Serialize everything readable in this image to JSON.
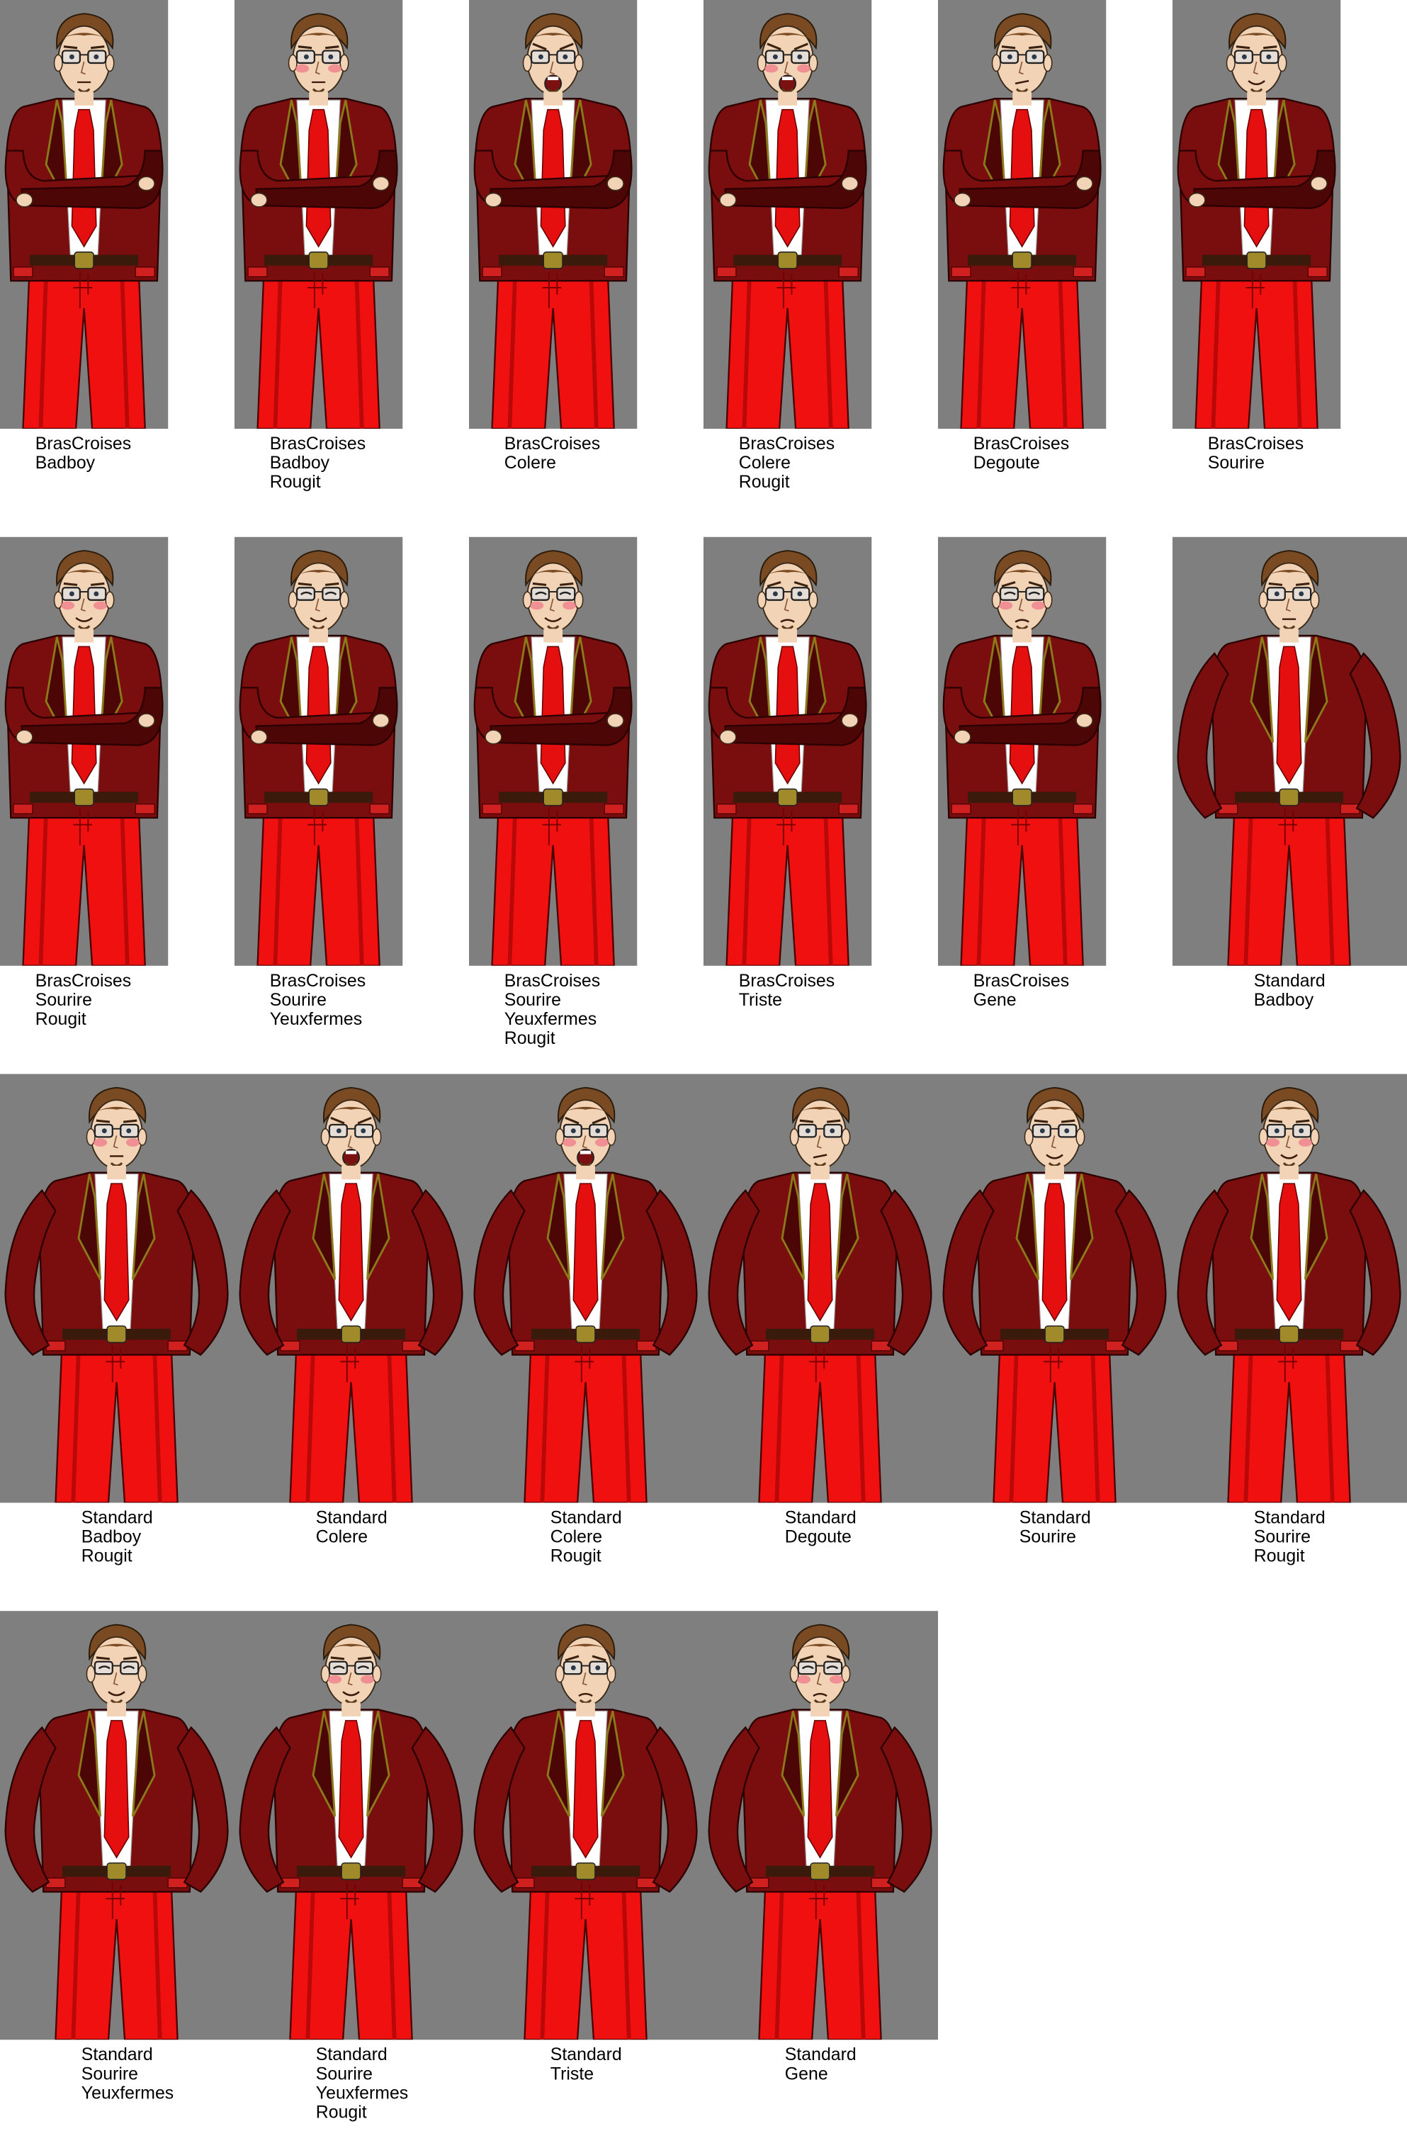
{
  "sheet": {
    "panel_color": "#7f7f7f",
    "background": "#ffffff",
    "colors": {
      "jacket": "#7a0d0d",
      "jacket_shadow": "#4d0606",
      "jacket_trim": "#8a7a1a",
      "tie": "#e50f0f",
      "pants": "#f01010",
      "pants_shadow": "#b80808",
      "shirt": "#ffffff",
      "skin": "#f3d3b5",
      "hair": "#7a4a23",
      "belt": "#3a1a0a",
      "buckle": "#a08a2a",
      "blush": "#f07a8a"
    }
  },
  "sprites": [
    {
      "pose": "BrasCroises",
      "lines": [
        "BrasCroises",
        "Badboy"
      ],
      "face": "neutral",
      "blush": false,
      "eyes": "open"
    },
    {
      "pose": "BrasCroises",
      "lines": [
        "BrasCroises",
        "Badboy",
        "Rougit"
      ],
      "face": "neutral",
      "blush": true,
      "eyes": "open"
    },
    {
      "pose": "BrasCroises",
      "lines": [
        "BrasCroises",
        "Colere"
      ],
      "face": "angry",
      "blush": false,
      "eyes": "open"
    },
    {
      "pose": "BrasCroises",
      "lines": [
        "BrasCroises",
        "Colere",
        "Rougit"
      ],
      "face": "angry",
      "blush": true,
      "eyes": "open"
    },
    {
      "pose": "BrasCroises",
      "lines": [
        "BrasCroises",
        "Degoute"
      ],
      "face": "disgust",
      "blush": false,
      "eyes": "open"
    },
    {
      "pose": "BrasCroises",
      "lines": [
        "BrasCroises",
        "Sourire"
      ],
      "face": "smile",
      "blush": false,
      "eyes": "open"
    },
    {
      "pose": "BrasCroises",
      "lines": [
        "BrasCroises",
        "Sourire",
        "Rougit"
      ],
      "face": "smile",
      "blush": true,
      "eyes": "open"
    },
    {
      "pose": "BrasCroises",
      "lines": [
        "BrasCroises",
        "Sourire",
        "Yeuxfermes"
      ],
      "face": "smile",
      "blush": false,
      "eyes": "closed"
    },
    {
      "pose": "BrasCroises",
      "lines": [
        "BrasCroises",
        "Sourire",
        "Yeuxfermes",
        "Rougit"
      ],
      "face": "smile",
      "blush": true,
      "eyes": "closed"
    },
    {
      "pose": "BrasCroises",
      "lines": [
        "BrasCroises",
        "Triste"
      ],
      "face": "sad",
      "blush": false,
      "eyes": "open"
    },
    {
      "pose": "BrasCroises",
      "lines": [
        "BrasCroises",
        "Gene"
      ],
      "face": "sad",
      "blush": true,
      "eyes": "closed"
    },
    {
      "pose": "Standard",
      "lines": [
        "Standard",
        "Badboy"
      ],
      "face": "neutral",
      "blush": false,
      "eyes": "open"
    },
    {
      "pose": "Standard",
      "lines": [
        "Standard",
        "Badboy",
        "Rougit"
      ],
      "face": "neutral",
      "blush": true,
      "eyes": "open"
    },
    {
      "pose": "Standard",
      "lines": [
        "Standard",
        "Colere"
      ],
      "face": "angry",
      "blush": false,
      "eyes": "open"
    },
    {
      "pose": "Standard",
      "lines": [
        "Standard",
        "Colere",
        "Rougit"
      ],
      "face": "angry",
      "blush": true,
      "eyes": "open"
    },
    {
      "pose": "Standard",
      "lines": [
        "Standard",
        "Degoute"
      ],
      "face": "disgust",
      "blush": false,
      "eyes": "open"
    },
    {
      "pose": "Standard",
      "lines": [
        "Standard",
        "Sourire"
      ],
      "face": "smile",
      "blush": false,
      "eyes": "open"
    },
    {
      "pose": "Standard",
      "lines": [
        "Standard",
        "Sourire",
        "Rougit"
      ],
      "face": "smile",
      "blush": true,
      "eyes": "open"
    },
    {
      "pose": "Standard",
      "lines": [
        "Standard",
        "Sourire",
        "Yeuxfermes"
      ],
      "face": "smile",
      "blush": false,
      "eyes": "closed"
    },
    {
      "pose": "Standard",
      "lines": [
        "Standard",
        "Sourire",
        "Yeuxfermes",
        "Rougit"
      ],
      "face": "smile",
      "blush": true,
      "eyes": "closed"
    },
    {
      "pose": "Standard",
      "lines": [
        "Standard",
        "Triste"
      ],
      "face": "sad",
      "blush": false,
      "eyes": "open"
    },
    {
      "pose": "Standard",
      "lines": [
        "Standard",
        "Gene"
      ],
      "face": "sad",
      "blush": true,
      "eyes": "closed"
    }
  ]
}
